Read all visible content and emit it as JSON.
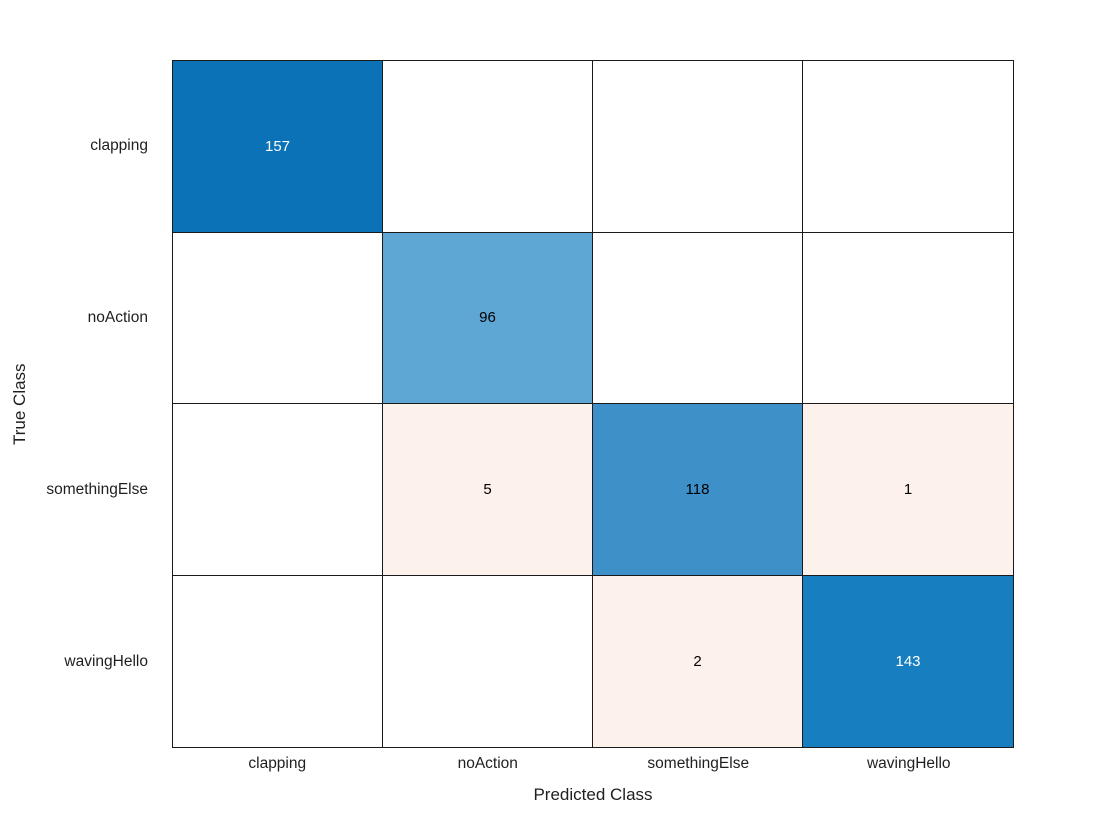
{
  "chart_data": {
    "type": "heatmap",
    "chart_kind": "confusion-matrix",
    "title": "",
    "xlabel": "Predicted Class",
    "ylabel": "True Class",
    "categories": [
      "clapping",
      "noAction",
      "somethingElse",
      "wavingHello"
    ],
    "matrix": [
      [
        157,
        0,
        0,
        0
      ],
      [
        0,
        96,
        0,
        0
      ],
      [
        0,
        5,
        118,
        1
      ],
      [
        0,
        0,
        2,
        143
      ]
    ],
    "cell_fills": [
      [
        "#0b72b8",
        "#ffffff",
        "#ffffff",
        "#ffffff"
      ],
      [
        "#ffffff",
        "#5ea6d4",
        "#ffffff",
        "#ffffff"
      ],
      [
        "#ffffff",
        "#fdf1ec",
        "#3e90c9",
        "#fdf1ec"
      ],
      [
        "#ffffff",
        "#ffffff",
        "#fdf1ec",
        "#177fc0"
      ]
    ],
    "cell_text_colors": [
      [
        "#ffffff",
        "#000000",
        "#000000",
        "#000000"
      ],
      [
        "#000000",
        "#000000",
        "#000000",
        "#000000"
      ],
      [
        "#000000",
        "#000000",
        "#000000",
        "#000000"
      ],
      [
        "#000000",
        "#000000",
        "#000000",
        "#ffffff"
      ]
    ],
    "grid_line_color": "#1a1a1a",
    "xlim": [
      "clapping",
      "wavingHello"
    ],
    "ylim": [
      "clapping",
      "wavingHello"
    ],
    "grid": true,
    "legend_position": "none"
  }
}
